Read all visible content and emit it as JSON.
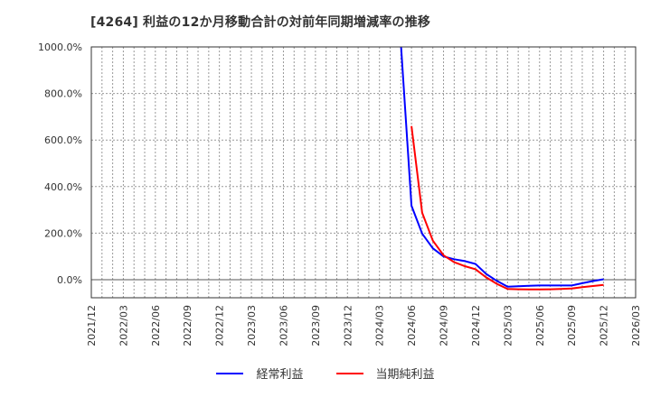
{
  "title": "[4264]  利益の12か月移動合計の対前年同期増減率の推移",
  "chart_data": {
    "type": "line",
    "title": "[4264]  利益の12か月移動合計の対前年同期増減率の推移",
    "xlabel": "",
    "ylabel": "",
    "ylim": [
      -78,
      1000
    ],
    "yticks": [
      0,
      200,
      400,
      600,
      800,
      1000
    ],
    "ytick_labels": [
      "0.0%",
      "200.0%",
      "400.0%",
      "600.0%",
      "800.0%",
      "1000.0%"
    ],
    "xtick_labels": [
      "2021/12",
      "2022/03",
      "2022/06",
      "2022/09",
      "2022/12",
      "2023/03",
      "2023/06",
      "2023/09",
      "2023/12",
      "2024/03",
      "2024/06",
      "2024/09",
      "2024/12",
      "2025/03",
      "2025/06",
      "2025/09",
      "2025/12",
      "2026/03"
    ],
    "grid": true,
    "legend_position": "bottom",
    "x": [
      "2024/05",
      "2024/06",
      "2024/07",
      "2024/08",
      "2024/09",
      "2024/10",
      "2024/11",
      "2024/12",
      "2025/01",
      "2025/02",
      "2025/03",
      "2025/04",
      "2025/05",
      "2025/06",
      "2025/07",
      "2025/08",
      "2025/09",
      "2025/10",
      "2025/11",
      "2025/12"
    ],
    "series": [
      {
        "name": "経常利益",
        "color": "#0000ff",
        "values": [
          1000,
          318,
          198,
          135,
          100,
          88,
          80,
          68,
          25,
          -5,
          -30,
          -28,
          -26,
          -25,
          -25,
          -25,
          -25,
          -15,
          -6,
          2
        ]
      },
      {
        "name": "当期純利益",
        "color": "#ff0000",
        "values": [
          null,
          660,
          288,
          168,
          105,
          75,
          58,
          45,
          10,
          -18,
          -40,
          -41,
          -42,
          -42,
          -41,
          -40,
          -38,
          -32,
          -27,
          -22
        ]
      }
    ]
  },
  "legend": [
    {
      "label": "経常利益",
      "color": "#0000ff"
    },
    {
      "label": "当期純利益",
      "color": "#ff0000"
    }
  ]
}
